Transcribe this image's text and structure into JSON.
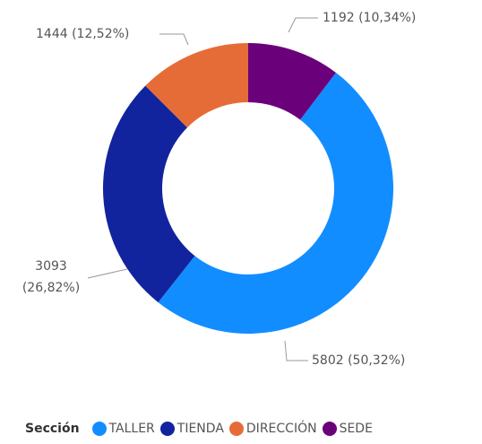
{
  "chart_data": {
    "type": "donut",
    "categories": [
      "TALLER",
      "TIENDA",
      "DIRECCIÓN",
      "SEDE"
    ],
    "values": [
      5802,
      3093,
      1444,
      1192
    ],
    "value_labels": [
      "5802 (50,32%)",
      "3093 (26,82%)",
      "1444 (12,52%)",
      "1192 (10,34%)"
    ],
    "colors": [
      "#118DFF",
      "#12239E",
      "#E66C37",
      "#6B007B"
    ],
    "legend_title": "Sección",
    "legend": "bottom-left"
  }
}
